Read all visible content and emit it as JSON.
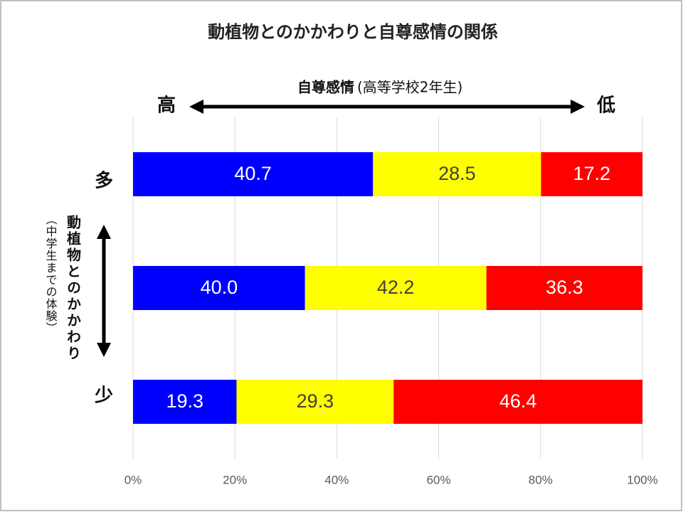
{
  "chart_data": {
    "type": "bar",
    "orientation": "horizontal",
    "stacking": "percent",
    "title": "動植物とのかかわりと自尊感情の関係",
    "top_label": "自尊感情",
    "top_label_note": "(高等学校2年生)",
    "high_label": "高",
    "low_label": "低",
    "y_label": "動植物とのかかわり",
    "y_label_note": "（中学生までの体験）",
    "categories": [
      "多",
      null,
      "少"
    ],
    "series": [
      {
        "color": "#0000ff",
        "label_color": "#ffffff",
        "values": [
          40.7,
          40,
          19.3
        ],
        "value_labels": [
          "40.7",
          "40.0",
          "19.3"
        ]
      },
      {
        "color": "#ffff00",
        "label_color": "#404040",
        "values": [
          28.5,
          42.2,
          29.3
        ],
        "value_labels": [
          "28.5",
          "42.2",
          "29.3"
        ]
      },
      {
        "color": "#ff0000",
        "label_color": "#ffffff",
        "values": [
          17.2,
          36.3,
          46.4
        ],
        "value_labels": [
          "17.2",
          "36.3",
          "46.4"
        ]
      }
    ],
    "xlim": [
      0,
      100
    ],
    "xticks": [
      {
        "value": 0,
        "label": "0%"
      },
      {
        "value": 20,
        "label": "20%"
      },
      {
        "value": 40,
        "label": "40%"
      },
      {
        "value": 60,
        "label": "60%"
      },
      {
        "value": 80,
        "label": "80%"
      },
      {
        "value": 100,
        "label": "100%"
      }
    ],
    "grid": true
  }
}
